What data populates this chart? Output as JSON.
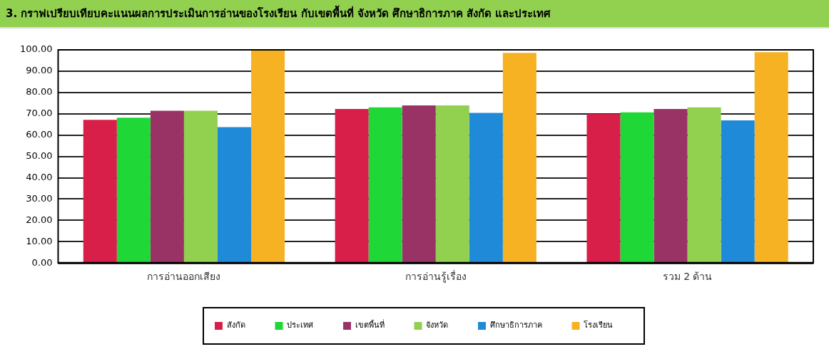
{
  "chart_data": {
    "type": "bar",
    "title": "3. กราฟเปรียบเทียบคะแนนผลการประเมินการอ่านของโรงเรียน กับเขตพื้นที่ จังหวัด ศึกษาธิการภาค สังกัด และประเทศ",
    "categories": [
      "การอ่านออกเสียง",
      "การอ่านรู้เรื่อง",
      "รวม 2 ด้าน"
    ],
    "series": [
      {
        "name": "สังกัด",
        "color": "#d71f4a",
        "values": [
          67.2,
          72.3,
          69.9
        ]
      },
      {
        "name": "ประเทศ",
        "color": "#1fd736",
        "values": [
          68.2,
          73.0,
          70.7
        ]
      },
      {
        "name": "เขตพื้นที่",
        "color": "#993366",
        "values": [
          71.4,
          73.9,
          72.3
        ]
      },
      {
        "name": "จังหวัด",
        "color": "#92d050",
        "values": [
          71.4,
          73.9,
          73.0
        ]
      },
      {
        "name": "ศึกษาธิการภาค",
        "color": "#1f8ad7",
        "values": [
          63.7,
          70.4,
          66.9
        ]
      },
      {
        "name": "โรงเรียน",
        "color": "#f6b223",
        "values": [
          99.9,
          98.6,
          98.9
        ]
      }
    ],
    "ylim": [
      0,
      100
    ],
    "yticks": [
      {
        "value": 0,
        "label": "0.00"
      },
      {
        "value": 10,
        "label": "10.00"
      },
      {
        "value": 20,
        "label": "20.00"
      },
      {
        "value": 30,
        "label": "30.00"
      },
      {
        "value": 40,
        "label": "40.00"
      },
      {
        "value": 50,
        "label": "50.00"
      },
      {
        "value": 60,
        "label": "60.00"
      },
      {
        "value": 70,
        "label": "70.00"
      },
      {
        "value": 80,
        "label": "80.00"
      },
      {
        "value": 90,
        "label": "90.00"
      },
      {
        "value": 100,
        "label": "100.00"
      }
    ],
    "grid": "y",
    "legend": "bottom"
  }
}
